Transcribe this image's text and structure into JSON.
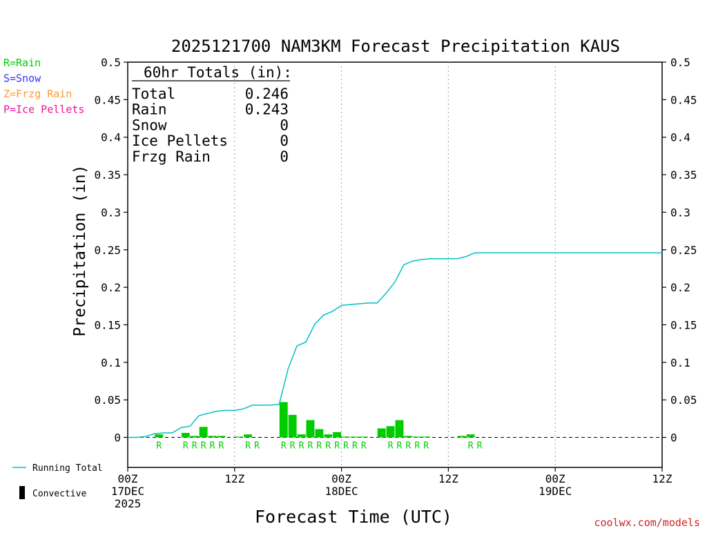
{
  "colors": {
    "rain": "#00cc00",
    "snow": "#3333ff",
    "frzg_rain": "#ff9933",
    "ice_pellets": "#ee1199",
    "running_total": "#00c0c0",
    "convective": "#000000",
    "credit": "#cc2222"
  },
  "precip_key": [
    {
      "label": "R=Rain",
      "color": "#00cc00"
    },
    {
      "label": "S=Snow",
      "color": "#3333ff"
    },
    {
      "label": "Z=Frzg Rain",
      "color": "#ff9933"
    },
    {
      "label": "P=Ice Pellets",
      "color": "#ee1199"
    }
  ],
  "totals_box": {
    "heading": "60hr Totals (in):",
    "rows": [
      {
        "label": "Total",
        "value": "0.246"
      },
      {
        "label": "Rain",
        "value": "0.243"
      },
      {
        "label": "Snow",
        "value": "0"
      },
      {
        "label": "Ice Pellets",
        "value": "0"
      },
      {
        "label": "Frzg Rain",
        "value": "0"
      }
    ]
  },
  "bottom_legend": {
    "running_total": "Running Total",
    "convective": "Convective"
  },
  "credit": "coolwx.com/models",
  "chart_data": {
    "type": "bar",
    "title": "2025121700 NAM3KM Forecast Precipitation KAUS",
    "xlabel": "Forecast Time (UTC)",
    "ylabel": "Precipitation (in)",
    "ylim": [
      -0.04,
      0.5
    ],
    "xlim_hours": [
      0,
      60
    ],
    "yticks": [
      0,
      0.05,
      0.1,
      0.15,
      0.2,
      0.25,
      0.3,
      0.35,
      0.4,
      0.45,
      0.5
    ],
    "ytick_labels": [
      "0",
      "0.05",
      "0.1",
      "0.15",
      "0.2",
      "0.25",
      "0.3",
      "0.35",
      "0.4",
      "0.45",
      "0.5"
    ],
    "xticks": [
      {
        "hour": 0,
        "lines": [
          "00Z",
          "17DEC",
          "2025"
        ]
      },
      {
        "hour": 12,
        "lines": [
          "12Z"
        ]
      },
      {
        "hour": 24,
        "lines": [
          "00Z",
          "18DEC"
        ]
      },
      {
        "hour": 36,
        "lines": [
          "12Z"
        ]
      },
      {
        "hour": 48,
        "lines": [
          "00Z",
          "19DEC"
        ]
      },
      {
        "hour": 60,
        "lines": [
          "12Z"
        ]
      }
    ],
    "grid_vertical_hours": [
      12,
      24,
      36,
      48
    ],
    "hourly_precip": {
      "name": "Rain",
      "hours": [
        4,
        7,
        8,
        9,
        10,
        11,
        13,
        14,
        18,
        19,
        20,
        21,
        22,
        23,
        24,
        25,
        26,
        27,
        29,
        30,
        31,
        32,
        33,
        34,
        38,
        39
      ],
      "values": [
        0.004,
        0.006,
        0.002,
        0.014,
        0.002,
        0.002,
        0.001,
        0.004,
        0.047,
        0.03,
        0.004,
        0.023,
        0.011,
        0.004,
        0.007,
        0.001,
        0.001,
        0.001,
        0.012,
        0.015,
        0.023,
        0.002,
        0.001,
        0.001,
        0.002,
        0.004
      ]
    },
    "type_markers": {
      "label": "R",
      "hours": [
        4,
        7,
        8,
        9,
        10,
        11,
        14,
        15,
        18,
        19,
        20,
        21,
        22,
        23,
        24,
        25,
        26,
        27,
        30,
        31,
        32,
        33,
        34,
        39,
        40
      ]
    },
    "running_total": {
      "name": "Running Total",
      "hours": [
        0,
        1,
        2,
        3,
        4,
        5,
        6,
        7,
        8,
        9,
        10,
        11,
        12,
        13,
        14,
        15,
        16,
        17,
        18,
        19,
        20,
        21,
        22,
        23,
        24,
        25,
        26,
        27,
        28,
        29,
        30,
        31,
        32,
        33,
        34,
        35,
        36,
        37,
        38,
        39,
        40,
        41,
        42,
        43,
        44,
        45,
        46,
        47,
        48,
        49,
        50,
        51,
        52,
        53,
        54,
        55,
        56,
        57,
        58,
        59,
        60
      ],
      "values": [
        0,
        0,
        0.001,
        0.005,
        0.006,
        0.006,
        0.013,
        0.015,
        0.029,
        0.032,
        0.035,
        0.036,
        0.036,
        0.038,
        0.043,
        0.043,
        0.043,
        0.044,
        0.091,
        0.122,
        0.127,
        0.151,
        0.163,
        0.168,
        0.176,
        0.177,
        0.178,
        0.179,
        0.179,
        0.192,
        0.207,
        0.23,
        0.235,
        0.237,
        0.238,
        0.238,
        0.238,
        0.238,
        0.241,
        0.246,
        0.246,
        0.246,
        0.246,
        0.246,
        0.246,
        0.246,
        0.246,
        0.246,
        0.246,
        0.246,
        0.246,
        0.246,
        0.246,
        0.246,
        0.246,
        0.246,
        0.246,
        0.246,
        0.246,
        0.246,
        0.246
      ]
    }
  }
}
